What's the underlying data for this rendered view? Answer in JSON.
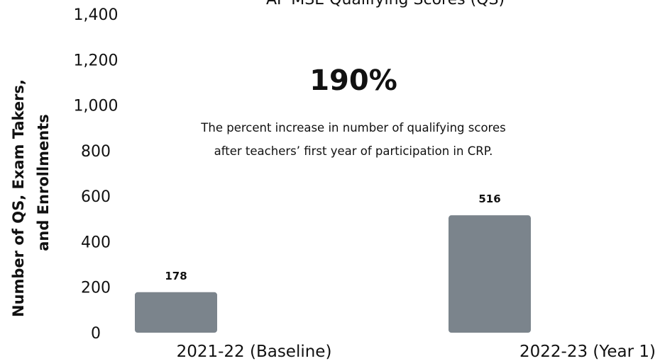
{
  "chart_data": {
    "type": "bar",
    "categories": [
      "2021-22 (Baseline)",
      "2022-23 (Year 1)"
    ],
    "series": [
      {
        "name": "AP MSE Qualifying Scores (QS)",
        "values": [
          178,
          516
        ]
      }
    ],
    "data_labels": [
      "178",
      "516"
    ],
    "ylabel_lines": [
      "Number of QS, Exam Takers,",
      "and Enrollments"
    ],
    "ylim": [
      0,
      1400
    ],
    "yticks": [
      0,
      200,
      400,
      600,
      800,
      1000,
      1200,
      1400
    ],
    "ytick_labels": [
      "0",
      "200",
      "400",
      "600",
      "800",
      "1,000",
      "1,200",
      "1,400"
    ],
    "legend_position": "top",
    "grid": false,
    "bar_color": "#7b848c"
  },
  "annotation": {
    "stat": "190%",
    "line1": "The percent increase in number of qualifying scores",
    "line2": "after teachers’ first year of participation in CRP."
  }
}
